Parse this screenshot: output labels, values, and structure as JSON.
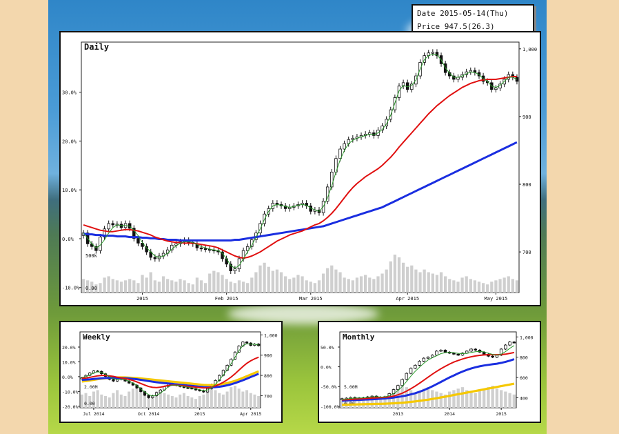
{
  "readout": {
    "date_label": "Date",
    "date_value": "2015-05-14(Thu)",
    "price_label": "Price",
    "price_value": "947.5(26.3)"
  },
  "colors": {
    "ma_short": "#2a9a2a",
    "ma_mid": "#e01010",
    "ma_long": "#1a2ee0",
    "ma_extra": "#f5c800",
    "volume": "#cfcfcf",
    "candle": "#111111"
  },
  "chart_data": [
    {
      "type": "candlestick",
      "title": "Daily",
      "left_axis": {
        "ticks": [
          "30.0%",
          "20.0%",
          "10.0%",
          "0.0%",
          "-10.0%"
        ]
      },
      "right_axis": {
        "ticks": [
          "1,000",
          "900",
          "800",
          "700"
        ],
        "range": [
          640,
          1010
        ]
      },
      "x_ticks": [
        "2015",
        "Feb 2015",
        "Mar 2015",
        "Apr 2015",
        "May 2015"
      ],
      "x_tick_index": [
        14,
        34,
        54,
        77,
        98
      ],
      "volume_labels": [
        "500k",
        "0.00"
      ],
      "close": [
        728,
        712,
        708,
        702,
        722,
        734,
        742,
        740,
        741,
        736,
        742,
        735,
        720,
        713,
        708,
        700,
        692,
        690,
        694,
        698,
        703,
        710,
        712,
        715,
        717,
        714,
        712,
        706,
        705,
        704,
        703,
        702,
        700,
        690,
        682,
        672,
        675,
        690,
        702,
        708,
        718,
        728,
        742,
        756,
        764,
        772,
        770,
        768,
        764,
        766,
        768,
        770,
        772,
        768,
        760,
        762,
        758,
        775,
        796,
        818,
        838,
        852,
        860,
        866,
        868,
        870,
        872,
        874,
        876,
        872,
        880,
        886,
        896,
        910,
        928,
        945,
        950,
        940,
        948,
        960,
        980,
        990,
        994,
        995,
        990,
        978,
        965,
        960,
        955,
        958,
        962,
        966,
        968,
        965,
        960,
        952,
        950,
        940,
        942,
        948,
        955,
        962,
        958,
        952
      ],
      "volume": [
        20,
        18,
        16,
        12,
        14,
        22,
        24,
        20,
        18,
        16,
        18,
        20,
        18,
        14,
        26,
        22,
        30,
        18,
        16,
        24,
        20,
        18,
        16,
        20,
        18,
        14,
        12,
        22,
        18,
        14,
        28,
        32,
        30,
        26,
        20,
        16,
        14,
        18,
        16,
        14,
        22,
        30,
        40,
        44,
        38,
        32,
        34,
        30,
        24,
        20,
        22,
        26,
        24,
        18,
        16,
        14,
        18,
        28,
        36,
        40,
        34,
        30,
        22,
        20,
        18,
        22,
        24,
        26,
        22,
        20,
        24,
        28,
        34,
        46,
        56,
        52,
        44,
        38,
        40,
        34,
        30,
        34,
        30,
        28,
        26,
        30,
        24,
        20,
        18,
        16,
        22,
        24,
        20,
        18,
        16,
        14,
        12,
        16,
        18,
        20,
        22,
        24,
        20,
        18
      ],
      "ma_short": [
        728,
        720,
        712,
        706,
        710,
        718,
        728,
        736,
        740,
        739,
        739,
        738,
        732,
        724,
        714,
        706,
        700,
        694,
        692,
        694,
        698,
        704,
        709,
        713,
        715,
        715,
        714,
        711,
        708,
        706,
        704,
        703,
        702,
        698,
        690,
        680,
        676,
        680,
        690,
        700,
        710,
        722,
        734,
        748,
        760,
        768,
        770,
        769,
        767,
        766,
        767,
        769,
        770,
        769,
        765,
        762,
        760,
        767,
        780,
        798,
        818,
        836,
        850,
        860,
        865,
        868,
        870,
        872,
        874,
        873,
        876,
        881,
        889,
        902,
        920,
        938,
        946,
        944,
        946,
        954,
        970,
        984,
        990,
        992,
        991,
        984,
        972,
        964,
        958,
        958,
        960,
        963,
        966,
        965,
        962,
        956,
        952,
        945,
        943,
        946,
        952,
        958,
        958,
        955
      ],
      "ma_mid": [
        740,
        738,
        736,
        734,
        732,
        731,
        730,
        730,
        731,
        732,
        733,
        733,
        732,
        731,
        729,
        727,
        725,
        722,
        720,
        718,
        716,
        715,
        714,
        714,
        713,
        713,
        713,
        712,
        711,
        710,
        709,
        708,
        706,
        703,
        700,
        697,
        694,
        692,
        691,
        692,
        694,
        697,
        700,
        704,
        708,
        712,
        716,
        719,
        722,
        725,
        727,
        729,
        731,
        734,
        737,
        740,
        742,
        746,
        751,
        757,
        764,
        772,
        780,
        788,
        795,
        801,
        806,
        811,
        815,
        819,
        823,
        828,
        834,
        840,
        847,
        855,
        862,
        869,
        876,
        883,
        890,
        897,
        904,
        910,
        916,
        921,
        926,
        931,
        935,
        939,
        943,
        946,
        949,
        951,
        953,
        954,
        955,
        955,
        955,
        956,
        957,
        958,
        959,
        959
      ],
      "ma_long": [
        727,
        726,
        726,
        725,
        725,
        724,
        724,
        724,
        723,
        723,
        723,
        722,
        722,
        722,
        721,
        721,
        720,
        720,
        719,
        719,
        718,
        718,
        718,
        717,
        717,
        717,
        717,
        717,
        717,
        717,
        717,
        717,
        717,
        717,
        717,
        717,
        718,
        718,
        719,
        720,
        721,
        722,
        723,
        724,
        725,
        726,
        727,
        728,
        729,
        730,
        731,
        732,
        733,
        734,
        735,
        736,
        737,
        738,
        740,
        742,
        744,
        746,
        748,
        750,
        752,
        754,
        756,
        758,
        760,
        762,
        764,
        766,
        769,
        772,
        775,
        778,
        781,
        784,
        787,
        790,
        793,
        796,
        799,
        802,
        805,
        808,
        811,
        814,
        817,
        820,
        823,
        826,
        829,
        832,
        835,
        838,
        841,
        844,
        847,
        850,
        853,
        856,
        859,
        862
      ]
    },
    {
      "type": "candlestick",
      "title": "Weekly",
      "left_axis": {
        "ticks": [
          "20.0%",
          "10.0%",
          "0.0%",
          "-10.0%",
          "-20.0%"
        ]
      },
      "right_axis": {
        "ticks": [
          "1,000",
          "900",
          "800",
          "700"
        ],
        "range": [
          640,
          1015
        ]
      },
      "x_ticks": [
        "Jul 2014",
        "Oct 2014",
        "2015",
        "Apr 2015"
      ],
      "x_tick_index": [
        3,
        17,
        30,
        43
      ],
      "volume_labels": [
        "2.00M",
        "0.00"
      ],
      "close": [
        788,
        800,
        812,
        822,
        820,
        808,
        795,
        780,
        772,
        780,
        788,
        772,
        762,
        752,
        738,
        720,
        702,
        690,
        700,
        715,
        728,
        745,
        760,
        756,
        750,
        745,
        740,
        738,
        735,
        728,
        725,
        718,
        735,
        755,
        775,
        800,
        825,
        850,
        880,
        915,
        945,
        965,
        960,
        948,
        955,
        947
      ],
      "volume": [
        18,
        20,
        16,
        22,
        24,
        18,
        16,
        14,
        20,
        24,
        18,
        16,
        22,
        26,
        28,
        24,
        20,
        18,
        16,
        22,
        24,
        20,
        18,
        16,
        14,
        18,
        20,
        16,
        14,
        12,
        16,
        18,
        22,
        26,
        24,
        20,
        18,
        22,
        28,
        30,
        26,
        22,
        24,
        20,
        18,
        16
      ],
      "ma_short": [
        790,
        794,
        802,
        812,
        818,
        815,
        806,
        794,
        784,
        780,
        780,
        778,
        772,
        762,
        750,
        734,
        718,
        704,
        698,
        702,
        712,
        728,
        744,
        752,
        752,
        749,
        745,
        742,
        739,
        734,
        729,
        724,
        728,
        740,
        756,
        778,
        802,
        828,
        858,
        890,
        922,
        948,
        956,
        954,
        954,
        950
      ],
      "ma_mid": [
        786,
        787,
        790,
        794,
        798,
        800,
        800,
        798,
        795,
        791,
        788,
        784,
        780,
        775,
        768,
        760,
        752,
        745,
        741,
        740,
        742,
        746,
        750,
        752,
        752,
        750,
        748,
        746,
        744,
        742,
        740,
        738,
        739,
        742,
        748,
        756,
        766,
        778,
        792,
        808,
        826,
        844,
        860,
        872,
        882,
        890
      ],
      "ma_long": [
        778,
        779,
        780,
        782,
        784,
        786,
        787,
        788,
        788,
        788,
        787,
        786,
        785,
        783,
        781,
        778,
        775,
        772,
        769,
        766,
        764,
        762,
        760,
        758,
        756,
        754,
        752,
        750,
        748,
        746,
        744,
        742,
        741,
        741,
        742,
        744,
        747,
        751,
        756,
        762,
        769,
        776,
        784,
        792,
        800,
        808
      ],
      "ma_extra": [
        770,
        772,
        775,
        778,
        781,
        784,
        786,
        788,
        789,
        790,
        790,
        790,
        789,
        788,
        787,
        785,
        783,
        781,
        779,
        777,
        775,
        773,
        771,
        769,
        767,
        765,
        763,
        761,
        759,
        757,
        755,
        753,
        752,
        752,
        753,
        755,
        758,
        762,
        767,
        773,
        780,
        788,
        796,
        804,
        812,
        820
      ]
    },
    {
      "type": "candlestick",
      "title": "Monthly",
      "left_axis": {
        "ticks": [
          "50.0%",
          "0.0%",
          "-50.0%",
          "-100.0%"
        ]
      },
      "right_axis": {
        "ticks": [
          "1,000",
          "800",
          "600",
          "400"
        ],
        "range": [
          300,
          1050
        ]
      },
      "x_ticks": [
        "2013",
        "2014",
        "2015"
      ],
      "x_tick_index": [
        13,
        25,
        37
      ],
      "volume_labels": [
        "5.00M",
        "0.00"
      ],
      "close": [
        390,
        395,
        402,
        398,
        392,
        400,
        408,
        415,
        405,
        398,
        410,
        440,
        480,
        520,
        580,
        640,
        690,
        720,
        760,
        790,
        800,
        820,
        860,
        870,
        850,
        840,
        830,
        820,
        840,
        860,
        880,
        870,
        850,
        830,
        810,
        800,
        820,
        880,
        920,
        950,
        947
      ],
      "volume": [
        10,
        12,
        10,
        14,
        12,
        10,
        12,
        14,
        16,
        12,
        14,
        18,
        22,
        26,
        30,
        28,
        24,
        20,
        22,
        26,
        28,
        24,
        22,
        20,
        18,
        22,
        24,
        26,
        28,
        24,
        22,
        20,
        24,
        26,
        28,
        30,
        26,
        24,
        22,
        20,
        18
      ],
      "ma_short": [
        380,
        386,
        392,
        396,
        396,
        398,
        402,
        408,
        410,
        406,
        408,
        420,
        440,
        470,
        510,
        560,
        612,
        660,
        700,
        740,
        772,
        795,
        815,
        835,
        845,
        848,
        845,
        838,
        835,
        838,
        846,
        854,
        858,
        852,
        840,
        828,
        820,
        830,
        855,
        888,
        915
      ],
      "ma_mid": [
        378,
        380,
        382,
        385,
        388,
        390,
        393,
        396,
        398,
        400,
        403,
        408,
        416,
        428,
        444,
        464,
        488,
        514,
        542,
        572,
        602,
        632,
        660,
        686,
        710,
        732,
        752,
        768,
        782,
        794,
        804,
        812,
        818,
        822,
        824,
        824,
        824,
        826,
        830,
        838,
        846
      ],
      "ma_long": [
        370,
        372,
        374,
        376,
        378,
        380,
        382,
        384,
        386,
        389,
        392,
        396,
        401,
        407,
        414,
        422,
        432,
        444,
        458,
        474,
        492,
        512,
        534,
        556,
        578,
        600,
        620,
        640,
        658,
        674,
        688,
        700,
        710,
        718,
        724,
        730,
        736,
        744,
        754,
        766,
        780
      ],
      "ma_extra": [
        330,
        331,
        332,
        333,
        334,
        335,
        336,
        337,
        338,
        339,
        340,
        342,
        344,
        347,
        350,
        354,
        358,
        363,
        368,
        374,
        380,
        387,
        394,
        402,
        410,
        418,
        426,
        434,
        442,
        450,
        458,
        466,
        474,
        482,
        490,
        498,
        506,
        514,
        522,
        530,
        538
      ]
    }
  ]
}
